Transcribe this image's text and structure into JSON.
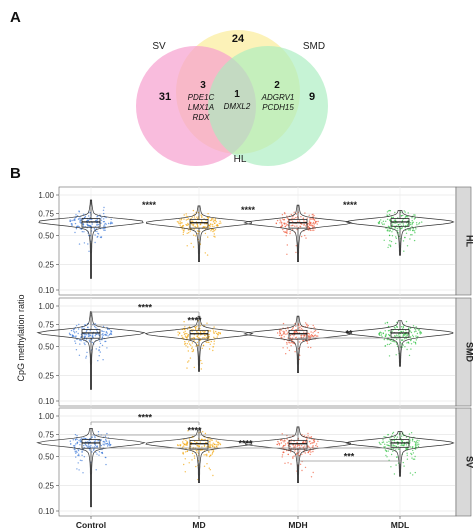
{
  "panels": {
    "a": {
      "label": "A"
    },
    "b": {
      "label": "B"
    }
  },
  "venn": {
    "sets": [
      {
        "name": "SV",
        "only_count": "31",
        "color": "#f7a0cf"
      },
      {
        "name": "SMD",
        "only_count": "9",
        "color": "#a8ecbf"
      },
      {
        "name": "HL",
        "only_count": "24",
        "color": "#fbeea0"
      }
    ],
    "intersections": [
      {
        "id": "sv_hl",
        "count": "3",
        "genes": [
          "PDE1C",
          "LMX1A",
          "RDX"
        ]
      },
      {
        "id": "all",
        "count": "1",
        "genes": [
          "DMXL2"
        ]
      },
      {
        "id": "smd_hl",
        "count": "2",
        "genes": [
          "ADGRV1",
          "PCDH15"
        ]
      }
    ]
  },
  "chart_data": {
    "type": "violin-box-jitter",
    "ylabel": "CpG methylation ratio",
    "categories": [
      "Control",
      "MD",
      "MDH",
      "MDL"
    ],
    "colors": {
      "Control": "#3a78d8",
      "MD": "#f2a200",
      "MDH": "#f05a3a",
      "MDL": "#2ec040"
    },
    "ylim": [
      0.1,
      1.0
    ],
    "yticks": [
      0.1,
      0.25,
      0.5,
      0.75,
      1.0
    ],
    "ytick_labels": [
      "0.10",
      "0.25",
      "0.50",
      "0.75",
      "1.00"
    ],
    "grid": true,
    "facets": [
      {
        "name": "HL",
        "medians": [
          0.65,
          0.64,
          0.64,
          0.65
        ],
        "q1": [
          0.59,
          0.58,
          0.58,
          0.6
        ],
        "q3": [
          0.69,
          0.68,
          0.68,
          0.69
        ],
        "whisker_low": [
          0.16,
          0.27,
          0.27,
          0.32
        ],
        "whisker_high": [
          0.93,
          0.85,
          0.86,
          0.79
        ],
        "significance": [
          {
            "label": "****",
            "x": "MD"
          },
          {
            "label": "****",
            "x": "MDH"
          },
          {
            "label": "****",
            "x": "MDL"
          }
        ]
      },
      {
        "name": "SMD",
        "medians": [
          0.65,
          0.64,
          0.64,
          0.65
        ],
        "q1": [
          0.59,
          0.58,
          0.58,
          0.6
        ],
        "q3": [
          0.69,
          0.68,
          0.68,
          0.69
        ],
        "whisker_low": [
          0.16,
          0.28,
          0.27,
          0.32
        ],
        "whisker_high": [
          0.92,
          0.86,
          0.86,
          0.8
        ],
        "significance": [
          {
            "label": "****",
            "from": "Control",
            "to": "MD"
          },
          {
            "label": "****",
            "from": "Control",
            "to": "MDH"
          },
          {
            "label": "**",
            "from": "MDH",
            "to": "MDL"
          }
        ]
      },
      {
        "name": "SV",
        "medians": [
          0.65,
          0.64,
          0.64,
          0.65
        ],
        "q1": [
          0.59,
          0.58,
          0.58,
          0.6
        ],
        "q3": [
          0.69,
          0.68,
          0.68,
          0.69
        ],
        "whisker_low": [
          0.12,
          0.27,
          0.27,
          0.32
        ],
        "whisker_high": [
          0.83,
          0.81,
          0.85,
          0.79
        ],
        "significance": [
          {
            "label": "****",
            "from": "Control",
            "to": "MD"
          },
          {
            "label": "****",
            "from": "Control",
            "to": "MDH"
          },
          {
            "label": "****",
            "from": "Control",
            "to": "MDL"
          },
          {
            "label": "***",
            "from": "MDH",
            "to": "MDL"
          }
        ]
      }
    ]
  }
}
